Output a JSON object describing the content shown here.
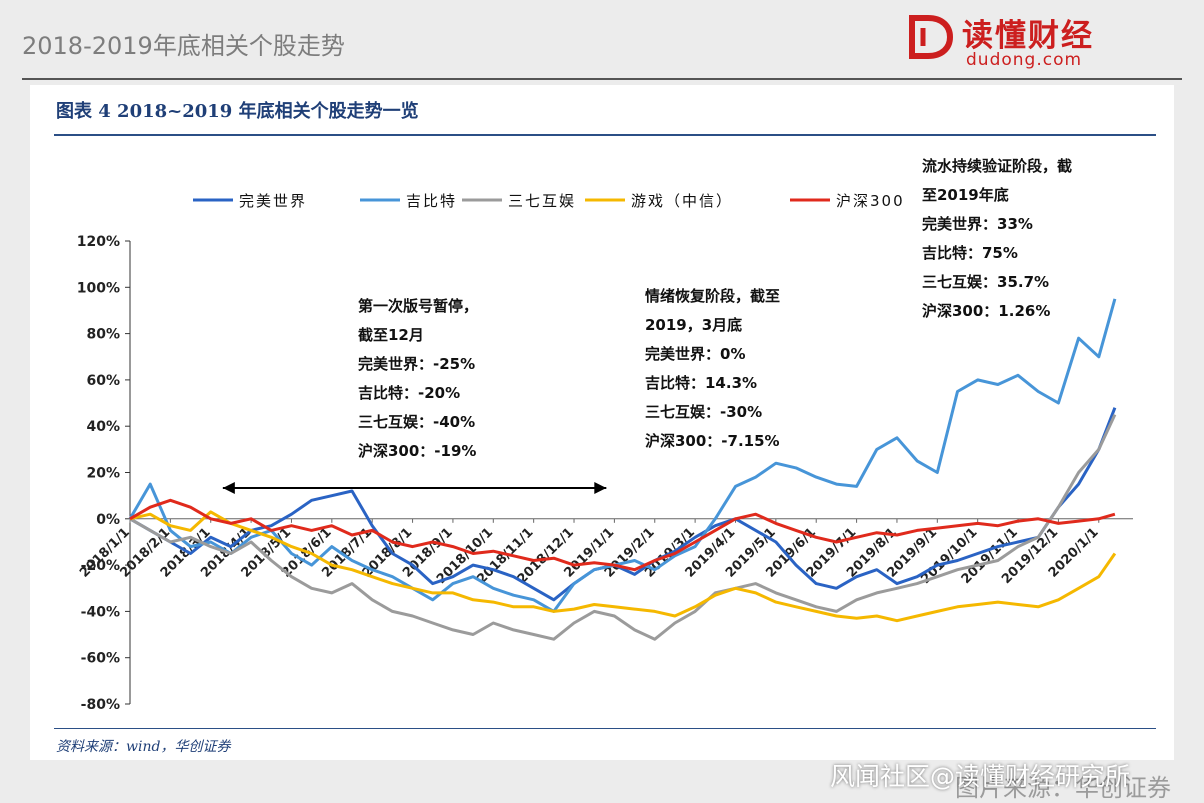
{
  "header": {
    "title": "2018-2019年底相关个股走势",
    "brand_name": "读懂财经",
    "brand_domain": "dudong.com",
    "brand_color": "#cc1f1f"
  },
  "figure": {
    "title": "图表 4   2018~2019 年底相关个股走势一览",
    "source": "资料来源：wind，华创证券"
  },
  "annotations": {
    "period1": [
      "第一次版号暂停，",
      "截至12月",
      "完美世界：-25%",
      "吉比特：-20%",
      "三七互娱：-40%",
      "沪深300：-19%"
    ],
    "period2": [
      "情绪恢复阶段，截至",
      "2019，3月底",
      "完美世界：0%",
      "吉比特：14.3%",
      "三七互娱：-30%",
      "沪深300：-7.15%"
    ],
    "period3": [
      "流水持续验证阶段，截",
      "至2019年底",
      "完美世界：33%",
      "吉比特：75%",
      "三七互娱：35.7%",
      "沪深300：1.26%"
    ]
  },
  "footer": {
    "watermark": "风闻社区@读懂财经研究所",
    "image_source": "图片来源：华创证券"
  },
  "chart_data": {
    "type": "line",
    "ylim": [
      -80,
      120
    ],
    "yticks": [
      120,
      100,
      80,
      60,
      40,
      20,
      0,
      -20,
      -40,
      -60,
      -80
    ],
    "ytick_labels": [
      "120%",
      "100%",
      "80%",
      "60%",
      "40%",
      "20%",
      "0%",
      "-20%",
      "-40%",
      "-60%",
      "-80%"
    ],
    "xlim": [
      0,
      24.6
    ],
    "xticks": [
      0,
      1,
      2,
      3,
      4,
      5,
      6,
      7,
      8,
      9,
      10,
      11,
      12,
      13,
      14,
      15,
      16,
      17,
      18,
      19,
      20,
      21,
      22,
      23,
      24
    ],
    "xtick_labels": [
      "2018/1/1",
      "2018/2/1",
      "2018/3/1",
      "2018/4/1",
      "2018/5/1",
      "2018/6/1",
      "2018/7/1",
      "2018/8/1",
      "2018/9/1",
      "2018/10/1",
      "2018/11/1",
      "2018/12/1",
      "2019/1/1",
      "2019/2/1",
      "2019/3/1",
      "2019/4/1",
      "2019/5/1",
      "2019/6/1",
      "2019/7/1",
      "2019/8/1",
      "2019/9/1",
      "2019/10/1",
      "2019/11/1",
      "2019/12/1",
      "2020/1/1"
    ],
    "legend_position": "top",
    "arrow_range": [
      2.3,
      11.8
    ],
    "series": [
      {
        "name": "完美世界",
        "color": "#2a63c4",
        "x": [
          0,
          0.5,
          1,
          1.5,
          2,
          2.5,
          3,
          3.5,
          4,
          4.5,
          5,
          5.5,
          6,
          6.5,
          7,
          7.5,
          8,
          8.5,
          9,
          9.5,
          10,
          10.5,
          11,
          11.5,
          12,
          12.5,
          13,
          13.5,
          14,
          14.5,
          15,
          15.5,
          16,
          16.5,
          17,
          17.5,
          18,
          18.5,
          19,
          19.5,
          20,
          20.5,
          21,
          21.5,
          22,
          22.5,
          23,
          23.5,
          24,
          24.4
        ],
        "y": [
          0,
          -5,
          -10,
          -15,
          -8,
          -12,
          -5,
          -3,
          2,
          8,
          10,
          12,
          -3,
          -15,
          -20,
          -28,
          -25,
          -20,
          -22,
          -25,
          -30,
          -35,
          -28,
          -22,
          -20,
          -24,
          -18,
          -14,
          -8,
          -3,
          0,
          -5,
          -10,
          -20,
          -28,
          -30,
          -25,
          -22,
          -28,
          -25,
          -20,
          -18,
          -15,
          -12,
          -10,
          -8,
          5,
          15,
          30,
          48
        ]
      },
      {
        "name": "吉比特",
        "color": "#4795d8",
        "x": [
          0,
          0.5,
          1,
          1.5,
          2,
          2.5,
          3,
          3.5,
          4,
          4.5,
          5,
          5.5,
          6,
          6.5,
          7,
          7.5,
          8,
          8.5,
          9,
          9.5,
          10,
          10.5,
          11,
          11.5,
          12,
          12.5,
          13,
          13.5,
          14,
          14.5,
          15,
          15.5,
          16,
          16.5,
          17,
          17.5,
          18,
          18.5,
          19,
          19.5,
          20,
          20.5,
          21,
          21.5,
          22,
          22.5,
          23,
          23.5,
          24,
          24.4
        ],
        "y": [
          0,
          15,
          -5,
          -12,
          -10,
          -15,
          -8,
          -5,
          -15,
          -20,
          -12,
          -18,
          -22,
          -25,
          -30,
          -35,
          -28,
          -25,
          -30,
          -33,
          -35,
          -40,
          -28,
          -22,
          -20,
          -18,
          -22,
          -16,
          -12,
          0,
          14,
          18,
          24,
          22,
          18,
          15,
          14,
          30,
          35,
          25,
          20,
          55,
          60,
          58,
          62,
          55,
          50,
          78,
          70,
          95
        ]
      },
      {
        "name": "三七互娱",
        "color": "#9b9b9b",
        "x": [
          0,
          0.5,
          1,
          1.5,
          2,
          2.5,
          3,
          3.5,
          4,
          4.5,
          5,
          5.5,
          6,
          6.5,
          7,
          7.5,
          8,
          8.5,
          9,
          9.5,
          10,
          10.5,
          11,
          11.5,
          12,
          12.5,
          13,
          13.5,
          14,
          14.5,
          15,
          15.5,
          16,
          16.5,
          17,
          17.5,
          18,
          18.5,
          19,
          19.5,
          20,
          20.5,
          21,
          21.5,
          22,
          22.5,
          23,
          23.5,
          24,
          24.4
        ],
        "y": [
          0,
          -5,
          -10,
          -8,
          -12,
          -15,
          -10,
          -18,
          -25,
          -30,
          -32,
          -28,
          -35,
          -40,
          -42,
          -45,
          -48,
          -50,
          -45,
          -48,
          -50,
          -52,
          -45,
          -40,
          -42,
          -48,
          -52,
          -45,
          -40,
          -32,
          -30,
          -28,
          -32,
          -35,
          -38,
          -40,
          -35,
          -32,
          -30,
          -28,
          -25,
          -22,
          -20,
          -18,
          -12,
          -8,
          5,
          20,
          30,
          45
        ]
      },
      {
        "name": "游戏（中信）",
        "color": "#f5b800",
        "x": [
          0,
          0.5,
          1,
          1.5,
          2,
          2.5,
          3,
          3.5,
          4,
          4.5,
          5,
          5.5,
          6,
          6.5,
          7,
          7.5,
          8,
          8.5,
          9,
          9.5,
          10,
          10.5,
          11,
          11.5,
          12,
          12.5,
          13,
          13.5,
          14,
          14.5,
          15,
          15.5,
          16,
          16.5,
          17,
          17.5,
          18,
          18.5,
          19,
          19.5,
          20,
          20.5,
          21,
          21.5,
          22,
          22.5,
          23,
          23.5,
          24,
          24.4
        ],
        "y": [
          0,
          2,
          -3,
          -5,
          3,
          -2,
          -5,
          -8,
          -12,
          -15,
          -20,
          -22,
          -25,
          -28,
          -30,
          -32,
          -32,
          -35,
          -36,
          -38,
          -38,
          -40,
          -39,
          -37,
          -38,
          -39,
          -40,
          -42,
          -38,
          -33,
          -30,
          -32,
          -36,
          -38,
          -40,
          -42,
          -43,
          -42,
          -44,
          -42,
          -40,
          -38,
          -37,
          -36,
          -37,
          -38,
          -35,
          -30,
          -25,
          -15
        ]
      },
      {
        "name": "沪深300",
        "color": "#e02a1c",
        "x": [
          0,
          0.5,
          1,
          1.5,
          2,
          2.5,
          3,
          3.5,
          4,
          4.5,
          5,
          5.5,
          6,
          6.5,
          7,
          7.5,
          8,
          8.5,
          9,
          9.5,
          10,
          10.5,
          11,
          11.5,
          12,
          12.5,
          13,
          13.5,
          14,
          14.5,
          15,
          15.5,
          16,
          16.5,
          17,
          17.5,
          18,
          18.5,
          19,
          19.5,
          20,
          20.5,
          21,
          21.5,
          22,
          22.5,
          23,
          23.5,
          24,
          24.4
        ],
        "y": [
          0,
          5,
          8,
          5,
          0,
          -2,
          0,
          -5,
          -3,
          -5,
          -3,
          -7,
          -5,
          -10,
          -12,
          -10,
          -12,
          -15,
          -14,
          -16,
          -18,
          -17,
          -20,
          -19,
          -20,
          -22,
          -18,
          -15,
          -10,
          -5,
          0,
          2,
          -2,
          -5,
          -8,
          -10,
          -8,
          -6,
          -7,
          -5,
          -4,
          -3,
          -2,
          -3,
          -1,
          0,
          -2,
          -1,
          0,
          2
        ]
      }
    ]
  }
}
